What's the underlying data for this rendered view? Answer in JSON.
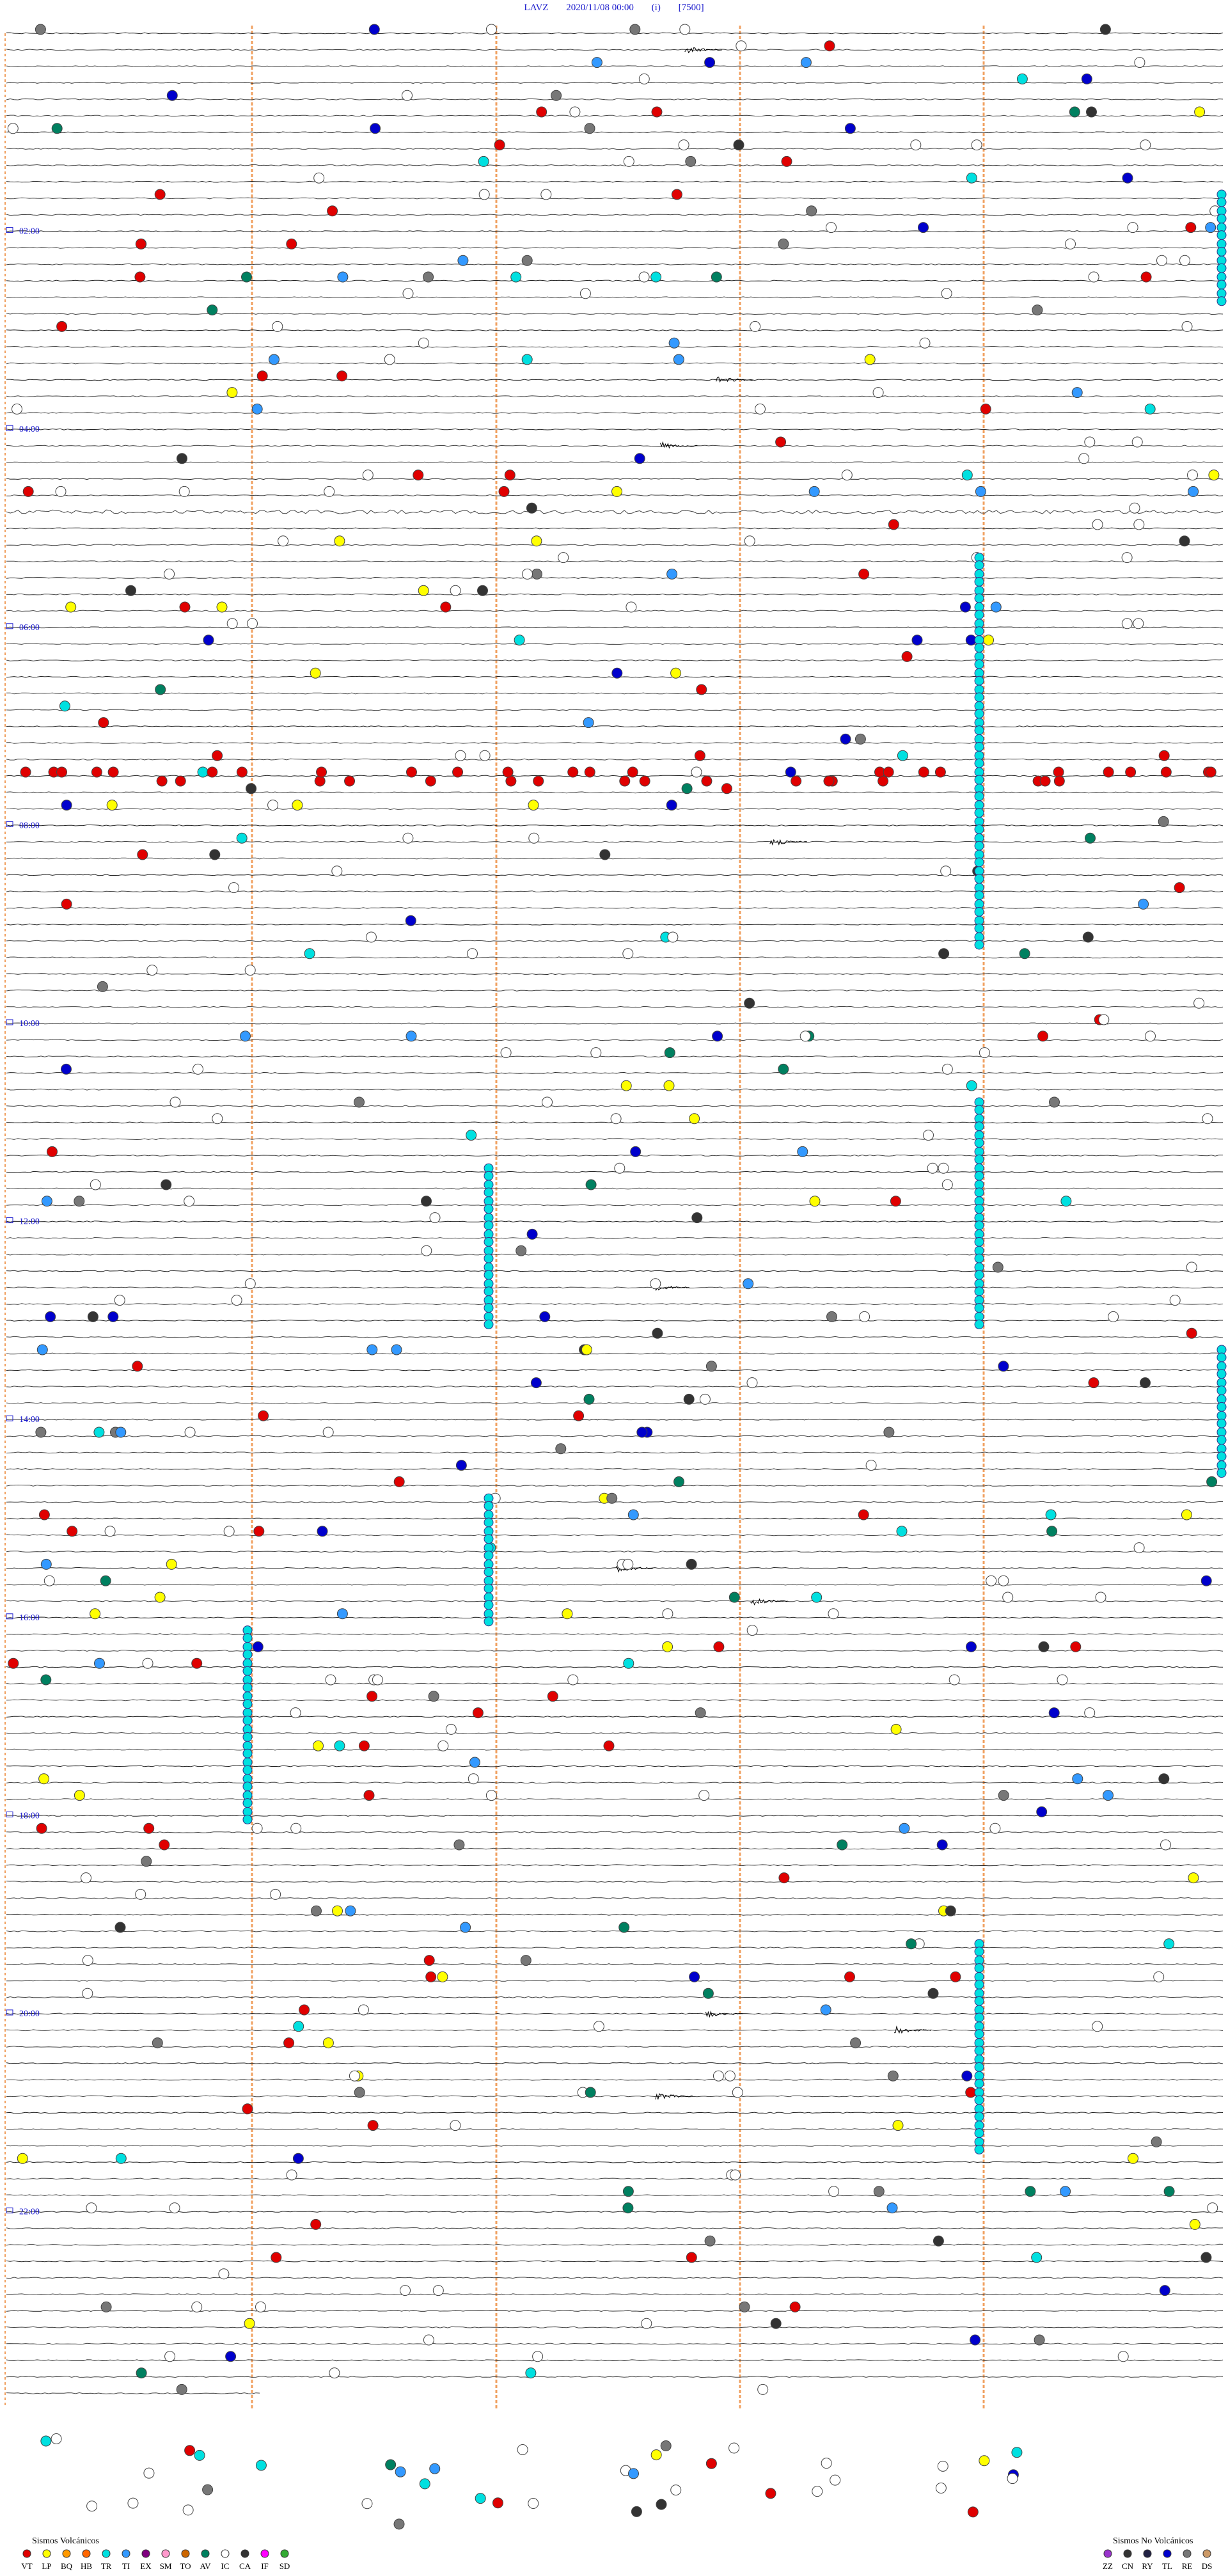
{
  "header": {
    "station": "LAVZ",
    "datetime": "2020/11/08 00:00",
    "mode": "(i)",
    "scale": "[7500]"
  },
  "time_labels": [
    "02:00",
    "04:00",
    "06:00",
    "08:00",
    "10:00",
    "12:00",
    "14:00",
    "16:00",
    "18:00",
    "20:00",
    "22:00"
  ],
  "legend": {
    "volcanic": {
      "title": "Sismos Volcánicos",
      "codes": [
        {
          "code": "VT",
          "color": "#e00000"
        },
        {
          "code": "LP",
          "color": "#ffff00"
        },
        {
          "code": "BQ",
          "color": "#ff9900"
        },
        {
          "code": "HB",
          "color": "#ff6600"
        },
        {
          "code": "TR",
          "color": "#00e0e0"
        },
        {
          "code": "TI",
          "color": "#3399ff"
        },
        {
          "code": "EX",
          "color": "#800080"
        },
        {
          "code": "SM",
          "color": "#ff99cc"
        },
        {
          "code": "TO",
          "color": "#cc6600"
        },
        {
          "code": "AV",
          "color": "#008060"
        },
        {
          "code": "IC",
          "color": "#ffffff"
        },
        {
          "code": "CA",
          "color": "#333333"
        },
        {
          "code": "IF",
          "color": "#ff00ff"
        },
        {
          "code": "SD",
          "color": "#33aa33"
        }
      ]
    },
    "non_volcanic": {
      "title": "Sismos No Volcánicos",
      "codes": [
        {
          "code": "ZZ",
          "color": "#9933cc"
        },
        {
          "code": "CN",
          "color": "#333333"
        },
        {
          "code": "RY",
          "color": "#222244"
        },
        {
          "code": "TL",
          "color": "#0000cc"
        },
        {
          "code": "RE",
          "color": "#777777"
        },
        {
          "code": "DS",
          "color": "#cc9966"
        }
      ]
    }
  }
}
